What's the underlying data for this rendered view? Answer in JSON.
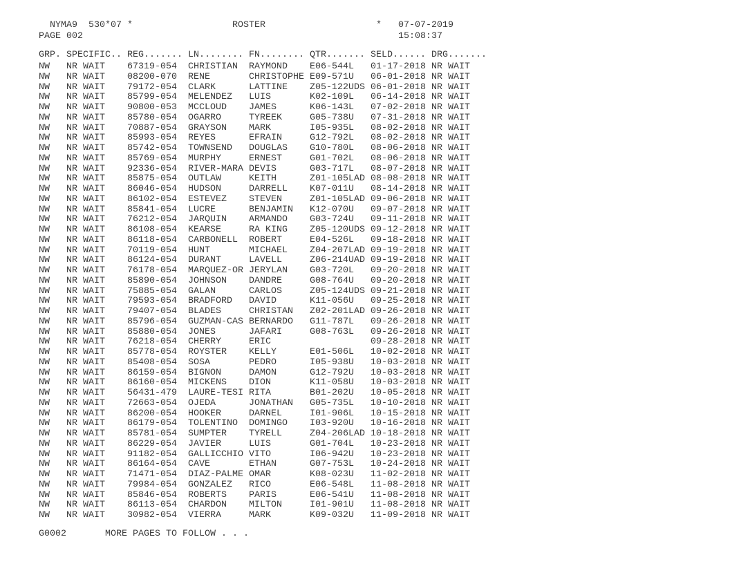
{
  "header": {
    "system_id": "NYMA9",
    "code": "530*07",
    "star_left": "*",
    "title": "ROSTER",
    "star_right": "*",
    "date": "07-07-2019",
    "page_label": "PAGE 002",
    "time": "15:08:37"
  },
  "columns": [
    "GRP.",
    "SPECIFIC..",
    "REG.......",
    "LN........",
    "FN........",
    "QTR.......",
    "SELD......",
    "DRG......."
  ],
  "rows": [
    [
      "NW",
      "NR WAIT",
      "67319-054",
      "CHRISTIAN",
      "RAYMOND",
      "E06-544L",
      "01-17-2018",
      "NR WAIT"
    ],
    [
      "NW",
      "NR WAIT",
      "08200-070",
      "RENE",
      "CHRISTOPHE",
      "E09-571U",
      "06-01-2018",
      "NR WAIT"
    ],
    [
      "NW",
      "NR WAIT",
      "79172-054",
      "CLARK",
      "LATTINE",
      "Z05-122UDS",
      "06-01-2018",
      "NR WAIT"
    ],
    [
      "NW",
      "NR WAIT",
      "85799-054",
      "MELENDEZ",
      "LUIS",
      "K02-109L",
      "06-14-2018",
      "NR WAIT"
    ],
    [
      "NW",
      "NR WAIT",
      "90800-053",
      "MCCLOUD",
      "JAMES",
      "K06-143L",
      "07-02-2018",
      "NR WAIT"
    ],
    [
      "NW",
      "NR WAIT",
      "85780-054",
      "OGARRO",
      "TYREEK",
      "G05-738U",
      "07-31-2018",
      "NR WAIT"
    ],
    [
      "NW",
      "NR WAIT",
      "70887-054",
      "GRAYSON",
      "MARK",
      "I05-935L",
      "08-02-2018",
      "NR WAIT"
    ],
    [
      "NW",
      "NR WAIT",
      "85993-054",
      "REYES",
      "EFRAIN",
      "G12-792L",
      "08-02-2018",
      "NR WAIT"
    ],
    [
      "NW",
      "NR WAIT",
      "85742-054",
      "TOWNSEND",
      "DOUGLAS",
      "G10-780L",
      "08-06-2018",
      "NR WAIT"
    ],
    [
      "NW",
      "NR WAIT",
      "85769-054",
      "MURPHY",
      "ERNEST",
      "G01-702L",
      "08-06-2018",
      "NR WAIT"
    ],
    [
      "NW",
      "NR WAIT",
      "92336-054",
      "RIVER-MARA",
      "DEVIS",
      "G03-717L",
      "08-07-2018",
      "NR WAIT"
    ],
    [
      "NW",
      "NR WAIT",
      "85875-054",
      "OUTLAW",
      "KEITH",
      "Z01-105LAD",
      "08-08-2018",
      "NR WAIT"
    ],
    [
      "NW",
      "NR WAIT",
      "86046-054",
      "HUDSON",
      "DARRELL",
      "K07-011U",
      "08-14-2018",
      "NR WAIT"
    ],
    [
      "NW",
      "NR WAIT",
      "86102-054",
      "ESTEVEZ",
      "STEVEN",
      "Z01-105LAD",
      "09-06-2018",
      "NR WAIT"
    ],
    [
      "NW",
      "NR WAIT",
      "85841-054",
      "LUCRE",
      "BENJAMIN",
      "K12-070U",
      "09-07-2018",
      "NR WAIT"
    ],
    [
      "NW",
      "NR WAIT",
      "76212-054",
      "JARQUIN",
      "ARMANDO",
      "G03-724U",
      "09-11-2018",
      "NR WAIT"
    ],
    [
      "NW",
      "NR WAIT",
      "86108-054",
      "KEARSE",
      "RA KING",
      "Z05-120UDS",
      "09-12-2018",
      "NR WAIT"
    ],
    [
      "NW",
      "NR WAIT",
      "86118-054",
      "CARBONELL",
      "ROBERT",
      "E04-526L",
      "09-18-2018",
      "NR WAIT"
    ],
    [
      "NW",
      "NR WAIT",
      "70119-054",
      "HUNT",
      "MICHAEL",
      "Z04-207LAD",
      "09-19-2018",
      "NR WAIT"
    ],
    [
      "NW",
      "NR WAIT",
      "86124-054",
      "DURANT",
      "LAVELL",
      "Z06-214UAD",
      "09-19-2018",
      "NR WAIT"
    ],
    [
      "NW",
      "NR WAIT",
      "76178-054",
      "MARQUEZ-OR",
      "JERYLAN",
      "G03-720L",
      "09-20-2018",
      "NR WAIT"
    ],
    [
      "NW",
      "NR WAIT",
      "85890-054",
      "JOHNSON",
      "DANDRE",
      "G08-764U",
      "09-20-2018",
      "NR WAIT"
    ],
    [
      "NW",
      "NR WAIT",
      "75885-054",
      "GALAN",
      "CARLOS",
      "Z05-124UDS",
      "09-21-2018",
      "NR WAIT"
    ],
    [
      "NW",
      "NR WAIT",
      "79593-054",
      "BRADFORD",
      "DAVID",
      "K11-056U",
      "09-25-2018",
      "NR WAIT"
    ],
    [
      "NW",
      "NR WAIT",
      "79407-054",
      "BLADES",
      "CHRISTAN",
      "Z02-201LAD",
      "09-26-2018",
      "NR WAIT"
    ],
    [
      "NW",
      "NR WAIT",
      "85796-054",
      "GUZMAN-CAS",
      "BERNARDO",
      "G11-787L",
      "09-26-2018",
      "NR WAIT"
    ],
    [
      "NW",
      "NR WAIT",
      "85880-054",
      "JONES",
      "JAFARI",
      "G08-763L",
      "09-26-2018",
      "NR WAIT"
    ],
    [
      "NW",
      "NR WAIT",
      "76218-054",
      "CHERRY",
      "ERIC",
      "",
      "09-28-2018",
      "NR WAIT"
    ],
    [
      "NW",
      "NR WAIT",
      "85778-054",
      "ROYSTER",
      "KELLY",
      "E01-506L",
      "10-02-2018",
      "NR WAIT"
    ],
    [
      "NW",
      "NR WAIT",
      "85408-054",
      "SOSA",
      "PEDRO",
      "I05-938U",
      "10-03-2018",
      "NR WAIT"
    ],
    [
      "NW",
      "NR WAIT",
      "86159-054",
      "BIGNON",
      "DAMON",
      "G12-792U",
      "10-03-2018",
      "NR WAIT"
    ],
    [
      "NW",
      "NR WAIT",
      "86160-054",
      "MICKENS",
      "DION",
      "K11-058U",
      "10-03-2018",
      "NR WAIT"
    ],
    [
      "NW",
      "NR WAIT",
      "56431-479",
      "LAURE-TESI",
      "RITA",
      "B01-202U",
      "10-05-2018",
      "NR WAIT"
    ],
    [
      "NW",
      "NR WAIT",
      "72663-054",
      "OJEDA",
      "JONATHAN",
      "G05-735L",
      "10-10-2018",
      "NR WAIT"
    ],
    [
      "NW",
      "NR WAIT",
      "86200-054",
      "HOOKER",
      "DARNEL",
      "I01-906L",
      "10-15-2018",
      "NR WAIT"
    ],
    [
      "NW",
      "NR WAIT",
      "86179-054",
      "TOLENTINO",
      "DOMINGO",
      "I03-920U",
      "10-16-2018",
      "NR WAIT"
    ],
    [
      "NW",
      "NR WAIT",
      "85781-054",
      "SUMPTER",
      "TYRELL",
      "Z04-206LAD",
      "10-18-2018",
      "NR WAIT"
    ],
    [
      "NW",
      "NR WAIT",
      "86229-054",
      "JAVIER",
      "LUIS",
      "G01-704L",
      "10-23-2018",
      "NR WAIT"
    ],
    [
      "NW",
      "NR WAIT",
      "91182-054",
      "GALLICCHIO",
      "VITO",
      "I06-942U",
      "10-23-2018",
      "NR WAIT"
    ],
    [
      "NW",
      "NR WAIT",
      "86164-054",
      "CAVE",
      "ETHAN",
      "G07-753L",
      "10-24-2018",
      "NR WAIT"
    ],
    [
      "NW",
      "NR WAIT",
      "71471-054",
      "DIAZ-PALME",
      "OMAR",
      "K08-023U",
      "11-02-2018",
      "NR WAIT"
    ],
    [
      "NW",
      "NR WAIT",
      "79984-054",
      "GONZALEZ",
      "RICO",
      "E06-548L",
      "11-08-2018",
      "NR WAIT"
    ],
    [
      "NW",
      "NR WAIT",
      "85846-054",
      "ROBERTS",
      "PARIS",
      "E06-541U",
      "11-08-2018",
      "NR WAIT"
    ],
    [
      "NW",
      "NR WAIT",
      "86113-054",
      "CHARDON",
      "MILTON",
      "I01-901U",
      "11-08-2018",
      "NR WAIT"
    ],
    [
      "NW",
      "NR WAIT",
      "30982-054",
      "VIERRA",
      "MARK",
      "K09-032U",
      "11-09-2018",
      "NR WAIT"
    ]
  ],
  "footer": {
    "code": "G0002",
    "message": "MORE PAGES TO FOLLOW . . ."
  }
}
